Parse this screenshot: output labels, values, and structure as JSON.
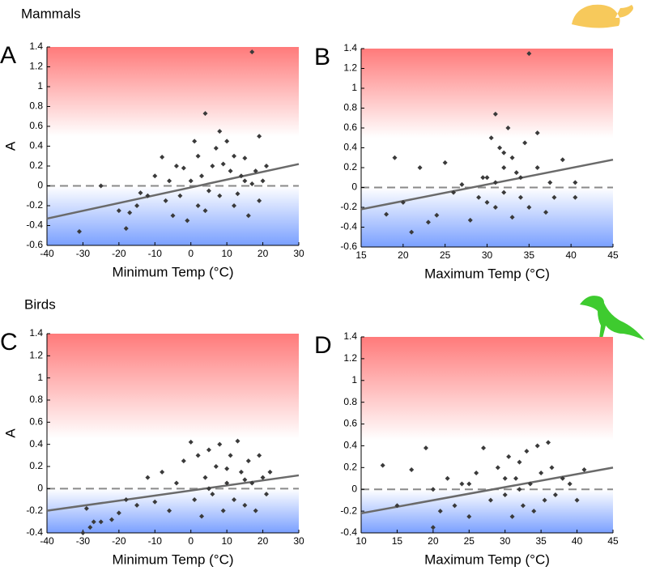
{
  "sections": [
    {
      "title": "Mammals",
      "color": "#f2c55c"
    },
    {
      "title": "Birds",
      "color": "#3ecb2f"
    }
  ],
  "chart_data": [
    {
      "type": "scatter",
      "label": "A",
      "x_label": "Minimum Temp (°C)",
      "y_label": "A",
      "xlim": [
        -40,
        30
      ],
      "xticks": [
        -40,
        -30,
        -20,
        -10,
        0,
        10,
        20,
        30
      ],
      "ylim": [
        -0.6,
        1.4
      ],
      "yticks": [
        -0.6,
        -0.4,
        -0.2,
        0,
        0.2,
        0.4,
        0.6,
        0.8,
        1,
        1.2,
        1.4
      ],
      "marker_color": "#3a3a3a",
      "reference_y": 0,
      "trend": {
        "x": [
          -40,
          30
        ],
        "y": [
          -0.33,
          0.22
        ],
        "color": "#6a6a6a"
      },
      "x": [
        17,
        4,
        -31,
        -25,
        -18,
        -17,
        -15,
        -14,
        -20,
        -10,
        -8,
        -7,
        -5,
        -3,
        -2,
        -1,
        0,
        1,
        2,
        3,
        5,
        6,
        7,
        8,
        9,
        10,
        11,
        12,
        13,
        14,
        15,
        16,
        17,
        18,
        19,
        20,
        21,
        19,
        -12,
        -6,
        4,
        8,
        12,
        15,
        -4,
        2
      ],
      "y": [
        1.35,
        0.73,
        -0.46,
        0.0,
        -0.43,
        -0.27,
        -0.2,
        -0.07,
        -0.25,
        0.1,
        0.29,
        -0.15,
        -0.3,
        -0.1,
        0.18,
        -0.35,
        0.05,
        0.45,
        -0.2,
        0.1,
        -0.05,
        0.2,
        0.38,
        -0.1,
        0.22,
        0.45,
        0.15,
        0.3,
        -0.08,
        0.1,
        0.28,
        -0.3,
        0.02,
        0.15,
        0.5,
        0.05,
        0.2,
        -0.15,
        -0.1,
        0.05,
        -0.25,
        0.55,
        -0.2,
        0.05,
        0.2,
        0.3
      ]
    },
    {
      "type": "scatter",
      "label": "B",
      "x_label": "Maximum Temp (°C)",
      "xlim": [
        15,
        45
      ],
      "xticks": [
        15,
        20,
        25,
        30,
        35,
        40,
        45
      ],
      "ylim": [
        -0.6,
        1.4
      ],
      "yticks": [
        -0.6,
        -0.4,
        -0.2,
        0,
        0.2,
        0.4,
        0.6,
        0.8,
        1,
        1.2,
        1.4
      ],
      "marker_color": "#3a3a3a",
      "reference_y": 0,
      "trend": {
        "x": [
          15,
          45
        ],
        "y": [
          -0.22,
          0.28
        ],
        "color": "#6a6a6a"
      },
      "x": [
        35,
        31,
        18,
        19,
        20,
        21,
        22,
        23,
        24,
        25,
        26,
        27,
        28,
        29,
        30,
        30.5,
        31,
        31.5,
        32,
        32,
        32.5,
        33,
        33,
        34,
        34.5,
        35,
        36,
        36,
        37,
        37.5,
        38,
        39,
        40.5,
        40.5,
        31,
        32,
        30,
        33.5,
        29.5,
        34
      ],
      "y": [
        1.35,
        0.74,
        -0.27,
        0.3,
        -0.15,
        -0.45,
        0.2,
        -0.35,
        -0.28,
        0.25,
        -0.05,
        0.03,
        -0.33,
        -0.1,
        0.1,
        0.5,
        -0.2,
        0.4,
        0.2,
        -0.05,
        0.6,
        0.3,
        -0.3,
        0.1,
        0.45,
        -0.2,
        0.2,
        0.55,
        -0.25,
        0.05,
        -0.1,
        0.28,
        0.05,
        -0.1,
        0.05,
        0.35,
        -0.15,
        0.15,
        0.1,
        -0.1
      ]
    },
    {
      "type": "scatter",
      "label": "C",
      "x_label": "Minimum Temp (°C)",
      "y_label": "A",
      "xlim": [
        -40,
        30
      ],
      "xticks": [
        -40,
        -30,
        -20,
        -10,
        0,
        10,
        20,
        30
      ],
      "ylim": [
        -0.4,
        1.4
      ],
      "yticks": [
        -0.4,
        -0.2,
        0,
        0.2,
        0.4,
        0.6,
        0.8,
        1,
        1.2,
        1.4
      ],
      "marker_color": "#3a3a3a",
      "reference_y": 0,
      "trend": {
        "x": [
          -40,
          30
        ],
        "y": [
          -0.2,
          0.12
        ],
        "color": "#6a6a6a"
      },
      "x": [
        -30,
        -29,
        -28,
        -27,
        -25,
        -22,
        -20,
        -18,
        -15,
        -12,
        -10,
        -8,
        -6,
        -4,
        -2,
        0,
        1,
        2,
        3,
        4,
        5,
        6,
        7,
        8,
        9,
        10,
        11,
        12,
        13,
        14,
        15,
        16,
        17,
        18,
        19,
        20,
        21,
        22,
        5,
        10,
        15
      ],
      "y": [
        -0.4,
        -0.18,
        -0.35,
        -0.3,
        -0.3,
        -0.28,
        -0.22,
        -0.1,
        -0.15,
        0.1,
        -0.12,
        0.15,
        -0.2,
        0.05,
        0.25,
        0.42,
        -0.1,
        0.3,
        -0.25,
        0.1,
        0.35,
        -0.05,
        0.2,
        0.4,
        -0.2,
        0.05,
        0.3,
        -0.1,
        0.43,
        0.15,
        -0.15,
        0.25,
        0.05,
        -0.2,
        0.3,
        0.1,
        -0.05,
        0.15,
        0.0,
        0.18,
        0.08
      ]
    },
    {
      "type": "scatter",
      "label": "D",
      "x_label": "Maximum Temp (°C)",
      "xlim": [
        10,
        45
      ],
      "xticks": [
        10,
        15,
        20,
        25,
        30,
        35,
        40,
        45
      ],
      "ylim": [
        -0.4,
        1.4
      ],
      "yticks": [
        -0.4,
        -0.2,
        0,
        0.2,
        0.4,
        0.6,
        0.8,
        1,
        1.2,
        1.4
      ],
      "marker_color": "#3a3a3a",
      "reference_y": 0,
      "trend": {
        "x": [
          10,
          45
        ],
        "y": [
          -0.22,
          0.2
        ],
        "color": "#6a6a6a"
      },
      "x": [
        13,
        15,
        17,
        19,
        20,
        21,
        22,
        23,
        24,
        25,
        26,
        27,
        28,
        29,
        30,
        30.5,
        31,
        31.5,
        32,
        32.5,
        33,
        33.5,
        34,
        34.5,
        35,
        35.5,
        36,
        36.5,
        37,
        38,
        39,
        40,
        41,
        20,
        25,
        30,
        32
      ],
      "y": [
        0.22,
        -0.15,
        0.18,
        0.38,
        -0.35,
        -0.2,
        0.1,
        -0.15,
        0.05,
        -0.25,
        0.15,
        0.38,
        -0.1,
        0.2,
        -0.05,
        0.3,
        -0.25,
        0.1,
        0.25,
        -0.15,
        0.35,
        0.05,
        -0.2,
        0.4,
        0.15,
        -0.1,
        0.43,
        0.2,
        -0.05,
        0.1,
        0.05,
        -0.1,
        0.18,
        0.0,
        0.05,
        0.1,
        0.0
      ]
    }
  ]
}
